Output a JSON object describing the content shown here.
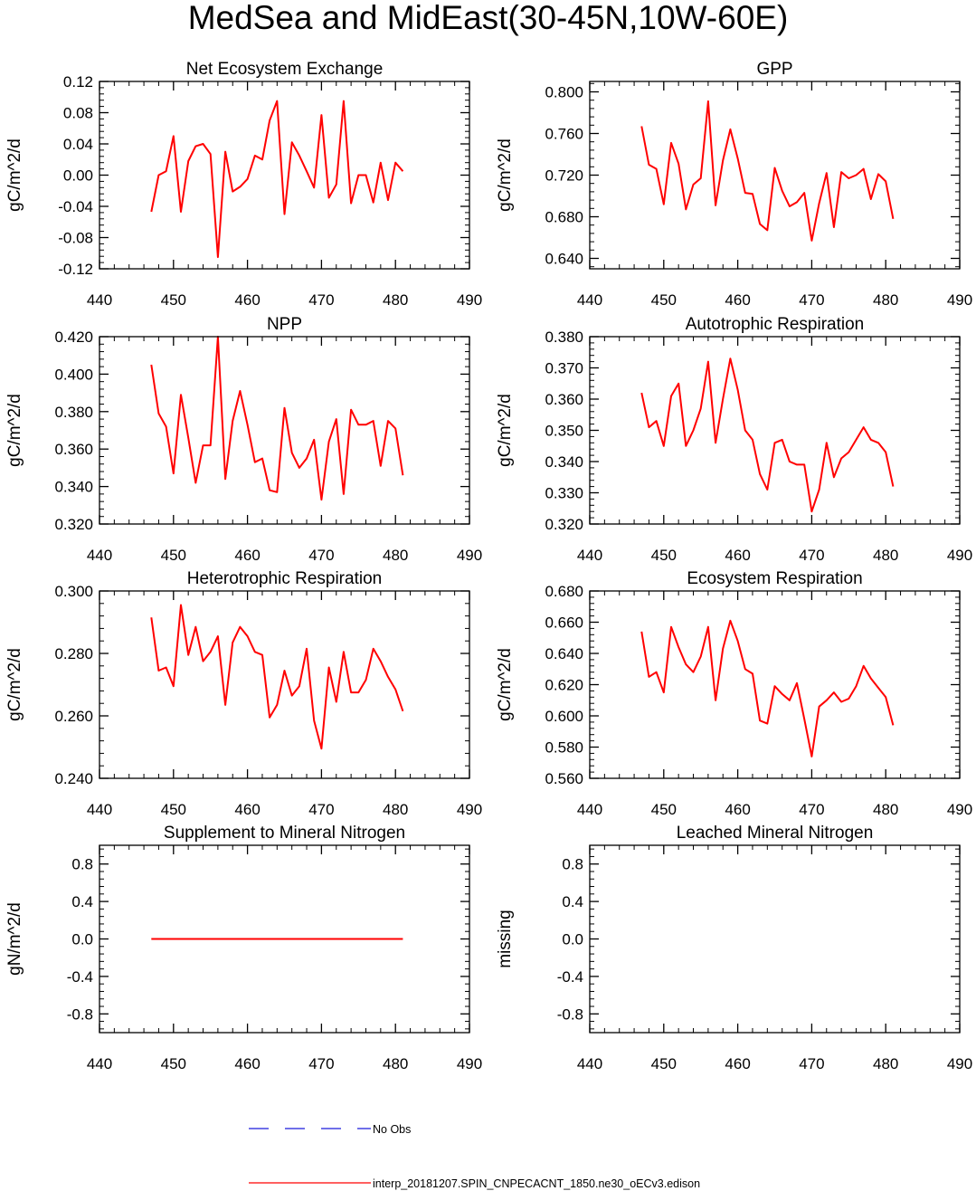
{
  "figure_title": "MedSea and MidEast(30-45N,10W-60E)",
  "colors": {
    "model": "#ff0000",
    "obs": "#1a1adc",
    "axis": "#000000"
  },
  "legend": {
    "obs_label": "No Obs",
    "model_label": "interp_20181207.SPIN_CNPECACNT_1850.ne30_oECv3.edison"
  },
  "chart_data": [
    {
      "type": "line",
      "title": "Net Ecosystem Exchange",
      "ylabel": "gC/m^2/d",
      "xlim": [
        440,
        490
      ],
      "xticks": [
        "440",
        "450",
        "460",
        "470",
        "480",
        "490"
      ],
      "ylim": [
        -0.12,
        0.12
      ],
      "yticks": [
        "-0.12",
        "-0.08",
        "-0.04",
        "0.00",
        "0.04",
        "0.08",
        "0.12"
      ],
      "series": [
        {
          "name": "interp_20181207.SPIN_CNPECACNT_1850.ne30_oECv3.edison",
          "x": [
            447,
            448,
            449,
            450,
            451,
            452,
            453,
            454,
            455,
            456,
            457,
            458,
            459,
            460,
            461,
            462,
            463,
            464,
            465,
            466,
            467,
            468,
            469,
            470,
            471,
            472,
            473,
            474,
            475,
            476,
            477,
            478,
            479,
            480,
            481
          ],
          "y": [
            -0.047,
            0.0,
            0.005,
            0.05,
            -0.047,
            0.018,
            0.037,
            0.04,
            0.027,
            -0.105,
            0.03,
            -0.021,
            -0.015,
            -0.005,
            0.025,
            0.02,
            0.07,
            0.095,
            -0.05,
            0.042,
            0.025,
            0.005,
            -0.016,
            0.077,
            -0.029,
            -0.012,
            0.095,
            -0.036,
            0.0,
            0.0,
            -0.035,
            0.016,
            -0.032,
            0.016,
            0.005
          ]
        }
      ]
    },
    {
      "type": "line",
      "title": "GPP",
      "ylabel": "gC/m^2/d",
      "xlim": [
        440,
        490
      ],
      "xticks": [
        "440",
        "450",
        "460",
        "470",
        "480",
        "490"
      ],
      "ylim": [
        0.63,
        0.81
      ],
      "yticks": [
        "0.640",
        "0.680",
        "0.720",
        "0.760",
        "0.800"
      ],
      "series": [
        {
          "name": "interp_20181207.SPIN_CNPECACNT_1850.ne30_oECv3.edison",
          "x": [
            447,
            448,
            449,
            450,
            451,
            452,
            453,
            454,
            455,
            456,
            457,
            458,
            459,
            460,
            461,
            462,
            463,
            464,
            465,
            466,
            467,
            468,
            469,
            470,
            471,
            472,
            473,
            474,
            475,
            476,
            477,
            478,
            479,
            480,
            481
          ],
          "y": [
            0.767,
            0.73,
            0.726,
            0.692,
            0.751,
            0.731,
            0.687,
            0.711,
            0.717,
            0.791,
            0.691,
            0.734,
            0.764,
            0.736,
            0.703,
            0.702,
            0.673,
            0.667,
            0.727,
            0.705,
            0.69,
            0.694,
            0.703,
            0.657,
            0.693,
            0.722,
            0.67,
            0.723,
            0.717,
            0.72,
            0.726,
            0.697,
            0.721,
            0.714,
            0.678
          ]
        }
      ]
    },
    {
      "type": "line",
      "title": "NPP",
      "ylabel": "gC/m^2/d",
      "xlim": [
        440,
        490
      ],
      "xticks": [
        "440",
        "450",
        "460",
        "470",
        "480",
        "490"
      ],
      "ylim": [
        0.32,
        0.42
      ],
      "yticks": [
        "0.320",
        "0.340",
        "0.360",
        "0.380",
        "0.400",
        "0.420"
      ],
      "series": [
        {
          "name": "interp_20181207.SPIN_CNPECACNT_1850.ne30_oECv3.edison",
          "x": [
            447,
            448,
            449,
            450,
            451,
            452,
            453,
            454,
            455,
            456,
            457,
            458,
            459,
            460,
            461,
            462,
            463,
            464,
            465,
            466,
            467,
            468,
            469,
            470,
            471,
            472,
            473,
            474,
            475,
            476,
            477,
            478,
            479,
            480,
            481
          ],
          "y": [
            0.405,
            0.379,
            0.372,
            0.347,
            0.389,
            0.366,
            0.342,
            0.362,
            0.362,
            0.42,
            0.344,
            0.375,
            0.391,
            0.373,
            0.353,
            0.355,
            0.338,
            0.337,
            0.382,
            0.358,
            0.35,
            0.355,
            0.365,
            0.333,
            0.364,
            0.376,
            0.336,
            0.381,
            0.373,
            0.373,
            0.375,
            0.351,
            0.375,
            0.371,
            0.346
          ]
        }
      ]
    },
    {
      "type": "line",
      "title": "Autotrophic Respiration",
      "ylabel": "gC/m^2/d",
      "xlim": [
        440,
        490
      ],
      "xticks": [
        "440",
        "450",
        "460",
        "470",
        "480",
        "490"
      ],
      "ylim": [
        0.32,
        0.38
      ],
      "yticks": [
        "0.320",
        "0.330",
        "0.340",
        "0.350",
        "0.360",
        "0.370",
        "0.380"
      ],
      "series": [
        {
          "name": "interp_20181207.SPIN_CNPECACNT_1850.ne30_oECv3.edison",
          "x": [
            447,
            448,
            449,
            450,
            451,
            452,
            453,
            454,
            455,
            456,
            457,
            458,
            459,
            460,
            461,
            462,
            463,
            464,
            465,
            466,
            467,
            468,
            469,
            470,
            471,
            472,
            473,
            474,
            475,
            476,
            477,
            478,
            479,
            480,
            481
          ],
          "y": [
            0.362,
            0.351,
            0.353,
            0.345,
            0.361,
            0.365,
            0.345,
            0.35,
            0.357,
            0.372,
            0.346,
            0.36,
            0.373,
            0.363,
            0.35,
            0.347,
            0.336,
            0.331,
            0.346,
            0.347,
            0.34,
            0.339,
            0.339,
            0.324,
            0.331,
            0.346,
            0.335,
            0.341,
            0.343,
            0.347,
            0.351,
            0.347,
            0.346,
            0.343,
            0.332
          ]
        }
      ]
    },
    {
      "type": "line",
      "title": "Heterotrophic Respiration",
      "ylabel": "gC/m^2/d",
      "xlim": [
        440,
        490
      ],
      "xticks": [
        "440",
        "450",
        "460",
        "470",
        "480",
        "490"
      ],
      "ylim": [
        0.24,
        0.3
      ],
      "yticks": [
        "0.240",
        "0.260",
        "0.280",
        "0.300"
      ],
      "series": [
        {
          "name": "interp_20181207.SPIN_CNPECACNT_1850.ne30_oECv3.edison",
          "x": [
            447,
            448,
            449,
            450,
            451,
            452,
            453,
            454,
            455,
            456,
            457,
            458,
            459,
            460,
            461,
            462,
            463,
            464,
            465,
            466,
            467,
            468,
            469,
            470,
            471,
            472,
            473,
            474,
            475,
            476,
            477,
            478,
            479,
            480,
            481
          ],
          "y": [
            0.2915,
            0.2745,
            0.2755,
            0.2695,
            0.2955,
            0.2795,
            0.2885,
            0.2775,
            0.2805,
            0.2855,
            0.2635,
            0.2835,
            0.2885,
            0.2855,
            0.2805,
            0.2795,
            0.2595,
            0.2635,
            0.2745,
            0.2665,
            0.2695,
            0.2815,
            0.2585,
            0.2495,
            0.2755,
            0.2645,
            0.2805,
            0.2675,
            0.2675,
            0.2715,
            0.2815,
            0.2775,
            0.2725,
            0.2685,
            0.2615
          ]
        }
      ]
    },
    {
      "type": "line",
      "title": "Ecosystem Respiration",
      "ylabel": "gC/m^2/d",
      "xlim": [
        440,
        490
      ],
      "xticks": [
        "440",
        "450",
        "460",
        "470",
        "480",
        "490"
      ],
      "ylim": [
        0.56,
        0.68
      ],
      "yticks": [
        "0.560",
        "0.580",
        "0.600",
        "0.620",
        "0.640",
        "0.660",
        "0.680"
      ],
      "series": [
        {
          "name": "interp_20181207.SPIN_CNPECACNT_1850.ne30_oECv3.edison",
          "x": [
            447,
            448,
            449,
            450,
            451,
            452,
            453,
            454,
            455,
            456,
            457,
            458,
            459,
            460,
            461,
            462,
            463,
            464,
            465,
            466,
            467,
            468,
            469,
            470,
            471,
            472,
            473,
            474,
            475,
            476,
            477,
            478,
            479,
            480,
            481
          ],
          "y": [
            0.654,
            0.625,
            0.628,
            0.615,
            0.657,
            0.644,
            0.633,
            0.628,
            0.638,
            0.657,
            0.61,
            0.643,
            0.661,
            0.648,
            0.63,
            0.627,
            0.597,
            0.595,
            0.619,
            0.614,
            0.61,
            0.621,
            0.598,
            0.574,
            0.606,
            0.61,
            0.615,
            0.609,
            0.611,
            0.619,
            0.632,
            0.624,
            0.618,
            0.612,
            0.594
          ]
        }
      ]
    },
    {
      "type": "line",
      "title": "Supplement to Mineral Nitrogen",
      "ylabel": "gN/m^2/d",
      "xlim": [
        440,
        490
      ],
      "xticks": [
        "440",
        "450",
        "460",
        "470",
        "480",
        "490"
      ],
      "ylim": [
        -1.0,
        1.0
      ],
      "yticks": [
        "-0.8",
        "-0.4",
        "0.0",
        "0.4",
        "0.8"
      ],
      "series": [
        {
          "name": "interp_20181207.SPIN_CNPECACNT_1850.ne30_oECv3.edison",
          "x": [
            447,
            481
          ],
          "y": [
            0.0,
            0.0
          ]
        }
      ]
    },
    {
      "type": "line",
      "title": "Leached Mineral Nitrogen",
      "ylabel": "missing",
      "xlim": [
        440,
        490
      ],
      "xticks": [
        "440",
        "450",
        "460",
        "470",
        "480",
        "490"
      ],
      "ylim": [
        -1.0,
        1.0
      ],
      "yticks": [
        "-0.8",
        "-0.4",
        "0.0",
        "0.4",
        "0.8"
      ],
      "series": []
    }
  ]
}
